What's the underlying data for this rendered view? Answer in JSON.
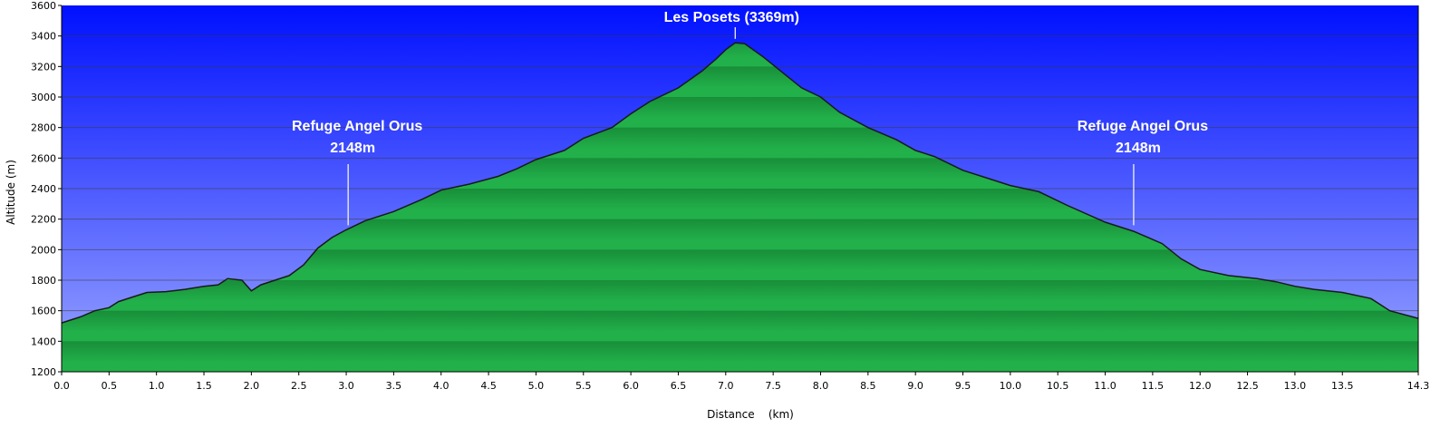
{
  "chart_data": {
    "type": "area",
    "xlabel": "Distance    (km)",
    "ylabel": "Altitude  (m)",
    "xlim": [
      0,
      14.3
    ],
    "ylim": [
      1200,
      3600
    ],
    "x_ticks": [
      "0.0",
      "0.5",
      "1.0",
      "1.5",
      "2.0",
      "2.5",
      "3.0",
      "3.5",
      "4.0",
      "4.5",
      "5.0",
      "5.5",
      "6.0",
      "6.5",
      "7.0",
      "7.5",
      "8.0",
      "8.5",
      "9.0",
      "9.5",
      "10.0",
      "10.5",
      "11.0",
      "11.5",
      "12.0",
      "12.5",
      "13.0",
      "13.5",
      "14.3"
    ],
    "x_tick_values": [
      0,
      0.5,
      1,
      1.5,
      2,
      2.5,
      3,
      3.5,
      4,
      4.5,
      5,
      5.5,
      6,
      6.5,
      7,
      7.5,
      8,
      8.5,
      9,
      9.5,
      10,
      10.5,
      11,
      11.5,
      12,
      12.5,
      13,
      13.5,
      14.3
    ],
    "y_ticks": [
      "1200",
      "1400",
      "1600",
      "1800",
      "2000",
      "2200",
      "2400",
      "2600",
      "2800",
      "3000",
      "3200",
      "3400",
      "3600"
    ],
    "y_tick_values": [
      1200,
      1400,
      1600,
      1800,
      2000,
      2200,
      2400,
      2600,
      2800,
      3000,
      3200,
      3400,
      3600
    ],
    "grid": true,
    "series": [
      {
        "x": [
          0,
          0.2,
          0.35,
          0.5,
          0.6,
          0.75,
          0.9,
          1.1,
          1.3,
          1.5,
          1.65,
          1.75,
          1.9,
          2.0,
          2.1,
          2.25,
          2.4,
          2.55,
          2.7,
          2.85,
          3.0,
          3.2,
          3.5,
          3.8,
          4.0,
          4.3,
          4.6,
          4.8,
          5.0,
          5.3,
          5.5,
          5.8,
          6.0,
          6.2,
          6.5,
          6.75,
          6.9,
          7.0,
          7.1,
          7.2,
          7.4,
          7.6,
          7.8,
          8.0,
          8.2,
          8.5,
          8.8,
          9.0,
          9.2,
          9.5,
          9.8,
          10.0,
          10.3,
          10.6,
          11.0,
          11.3,
          11.6,
          11.8,
          12.0,
          12.3,
          12.6,
          12.8,
          13.0,
          13.2,
          13.5,
          13.8,
          14.0,
          14.3
        ],
        "y": [
          1520,
          1560,
          1600,
          1620,
          1660,
          1690,
          1720,
          1725,
          1740,
          1760,
          1770,
          1810,
          1800,
          1730,
          1770,
          1800,
          1830,
          1900,
          2010,
          2080,
          2130,
          2190,
          2250,
          2330,
          2390,
          2430,
          2480,
          2530,
          2590,
          2650,
          2730,
          2800,
          2890,
          2970,
          3060,
          3170,
          3250,
          3310,
          3355,
          3350,
          3260,
          3160,
          3060,
          3000,
          2900,
          2800,
          2720,
          2650,
          2610,
          2520,
          2460,
          2420,
          2380,
          2290,
          2180,
          2120,
          2040,
          1940,
          1870,
          1830,
          1810,
          1790,
          1760,
          1740,
          1720,
          1680,
          1600,
          1550
        ]
      }
    ],
    "annotations": [
      {
        "line1": "Les Posets (3369m)",
        "line2": "",
        "x": 7.1,
        "y": 3369
      },
      {
        "line1": "Refuge Angel Orus",
        "line2": "2148m",
        "x": 3.02,
        "y": 2148
      },
      {
        "line1": "Refuge Angel Orus",
        "line2": "2148m",
        "x": 11.3,
        "y": 2148
      }
    ],
    "colors": {
      "sky_top": "#0010ff",
      "sky_bottom": "#9aa6ff",
      "terrain_light": "#22b04a",
      "terrain_dark": "#178a37",
      "outline": "#1a1a1a",
      "gridline": "#3a3a3a",
      "annotation_line": "#ffffff"
    }
  }
}
